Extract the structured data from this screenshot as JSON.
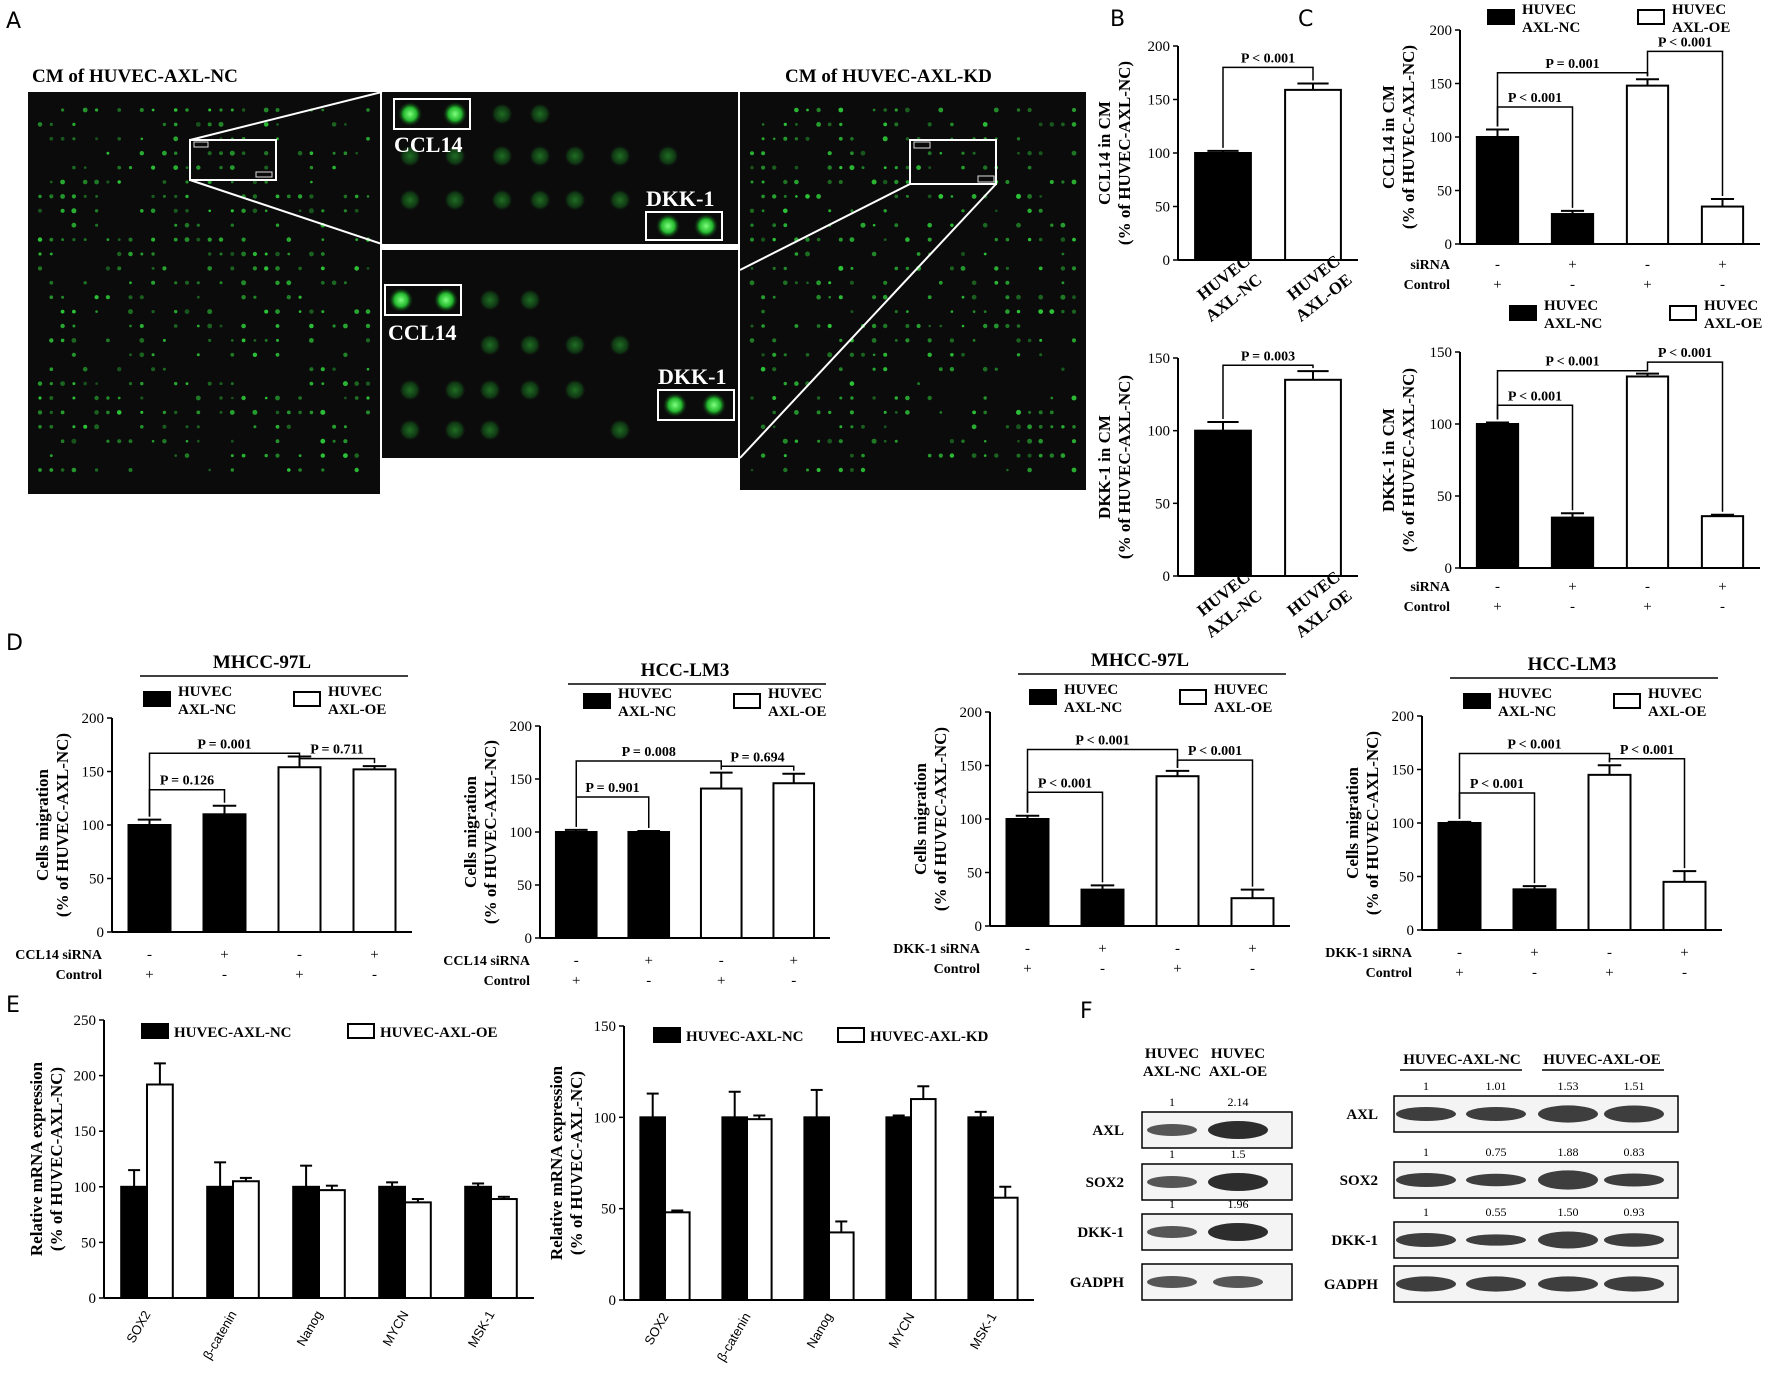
{
  "panels": {
    "A": "A",
    "B": "B",
    "C": "C",
    "D": "D",
    "E": "E",
    "F": "F"
  },
  "panel_a": {
    "left_title": "CM of  HUVEC-AXL-NC",
    "right_title": "CM of  HUVEC-AXL-KD",
    "labels": [
      "CCL14",
      "DKK-1",
      "CCL14",
      "DKK-1"
    ]
  },
  "sirna_label": "siRNA",
  "control_label": "Control",
  "chart_data": [
    {
      "id": "B1",
      "type": "bar",
      "ylabel": [
        "CCL14 in CM",
        "(% of HUVEC-AXL-NC)"
      ],
      "ylim": [
        0,
        200
      ],
      "yticks": [
        0,
        50,
        100,
        150,
        200
      ],
      "categories": [
        [
          "HUVEC",
          "AXL-NC"
        ],
        [
          "HUVEC",
          "AXL-OE"
        ]
      ],
      "values": [
        100,
        159
      ],
      "errors": [
        2,
        6
      ],
      "fill": [
        "black",
        "white"
      ],
      "comparisons": [
        {
          "a": 0,
          "b": 1,
          "label": "P < 0.001"
        }
      ]
    },
    {
      "id": "B2",
      "type": "bar",
      "ylabel": [
        "DKK-1 in CM",
        "(% of HUVEC-AXL-NC)"
      ],
      "ylim": [
        0,
        150
      ],
      "yticks": [
        0,
        50,
        100,
        150
      ],
      "categories": [
        [
          "HUVEC",
          "AXL-NC"
        ],
        [
          "HUVEC",
          "AXL-OE"
        ]
      ],
      "values": [
        100,
        135
      ],
      "errors": [
        6,
        6
      ],
      "fill": [
        "black",
        "white"
      ],
      "comparisons": [
        {
          "a": 0,
          "b": 1,
          "label": "P = 0.003"
        }
      ]
    },
    {
      "id": "C1",
      "type": "bar",
      "ylabel": [
        "CCL14 in CM",
        "(% of HUVEC-AXL-NC)"
      ],
      "ylim": [
        0,
        200
      ],
      "yticks": [
        0,
        50,
        100,
        150,
        200
      ],
      "legend": [
        [
          "HUVEC",
          "AXL-NC"
        ],
        [
          "HUVEC",
          "AXL-OE"
        ]
      ],
      "values": [
        100,
        28,
        148,
        35
      ],
      "errors": [
        7,
        3,
        6,
        7
      ],
      "fill": [
        "black",
        "black",
        "white",
        "white"
      ],
      "row1": [
        "-",
        "+",
        "-",
        "+"
      ],
      "row2": [
        "+",
        "-",
        "+",
        "-"
      ],
      "comparisons": [
        {
          "a": 0,
          "b": 1,
          "label": "P < 0.001"
        },
        {
          "a": 0,
          "b": 2,
          "label": "P = 0.001"
        },
        {
          "a": 2,
          "b": 3,
          "label": "P < 0.001"
        }
      ]
    },
    {
      "id": "C2",
      "type": "bar",
      "ylabel": [
        "DKK-1 in CM",
        "(% of HUVEC-AXL-NC)"
      ],
      "ylim": [
        0,
        150
      ],
      "yticks": [
        0,
        50,
        100,
        150
      ],
      "legend": [
        [
          "HUVEC",
          "AXL-NC"
        ],
        [
          "HUVEC",
          "AXL-OE"
        ]
      ],
      "values": [
        100,
        35,
        133,
        36
      ],
      "errors": [
        1,
        3,
        2,
        1
      ],
      "fill": [
        "black",
        "black",
        "white",
        "white"
      ],
      "row1": [
        "-",
        "+",
        "-",
        "+"
      ],
      "row2": [
        "+",
        "-",
        "+",
        "-"
      ],
      "comparisons": [
        {
          "a": 0,
          "b": 1,
          "label": "P < 0.001"
        },
        {
          "a": 0,
          "b": 2,
          "label": "P < 0.001"
        },
        {
          "a": 2,
          "b": 3,
          "label": "P < 0.001"
        }
      ]
    },
    {
      "id": "D1",
      "type": "bar",
      "title": "MHCC-97L",
      "ylabel": [
        "Cells migration",
        "(% of  HUVEC-AXL-NC)"
      ],
      "ylim": [
        0,
        200
      ],
      "yticks": [
        0,
        50,
        100,
        150,
        200
      ],
      "legend": [
        [
          "HUVEC",
          "AXL-NC"
        ],
        [
          "HUVEC",
          "AXL-OE"
        ]
      ],
      "values": [
        100,
        110,
        154,
        152
      ],
      "errors": [
        5,
        8,
        10,
        3
      ],
      "fill": [
        "black",
        "black",
        "white",
        "white"
      ],
      "row1_label": "CCL14 siRNA",
      "row1": [
        "-",
        "+",
        "-",
        "+"
      ],
      "row2": [
        "+",
        "-",
        "+",
        "-"
      ],
      "comparisons": [
        {
          "a": 0,
          "b": 1,
          "label": "P = 0.126"
        },
        {
          "a": 0,
          "b": 2,
          "label": "P = 0.001"
        },
        {
          "a": 2,
          "b": 3,
          "label": "P = 0.711"
        }
      ]
    },
    {
      "id": "D2",
      "type": "bar",
      "title": "HCC-LM3",
      "ylabel": [
        "Cells migration",
        "(% of  HUVEC-AXL-NC)"
      ],
      "ylim": [
        0,
        200
      ],
      "yticks": [
        0,
        50,
        100,
        150,
        200
      ],
      "legend": [
        [
          "HUVEC",
          "AXL-NC"
        ],
        [
          "HUVEC",
          "AXL-OE"
        ]
      ],
      "values": [
        100,
        100,
        141,
        146
      ],
      "errors": [
        2,
        1,
        15,
        9
      ],
      "fill": [
        "black",
        "black",
        "white",
        "white"
      ],
      "row1_label": "CCL14 siRNA",
      "row1": [
        "-",
        "+",
        "-",
        "+"
      ],
      "row2": [
        "+",
        "-",
        "+",
        "-"
      ],
      "comparisons": [
        {
          "a": 0,
          "b": 1,
          "label": "P = 0.901"
        },
        {
          "a": 0,
          "b": 2,
          "label": "P = 0.008"
        },
        {
          "a": 2,
          "b": 3,
          "label": "P = 0.694"
        }
      ]
    },
    {
      "id": "D3",
      "type": "bar",
      "title": "MHCC-97L",
      "ylabel": [
        "Cells migration",
        "(% of  HUVEC-AXL-NC)"
      ],
      "ylim": [
        0,
        200
      ],
      "yticks": [
        0,
        50,
        100,
        150,
        200
      ],
      "legend": [
        [
          "HUVEC",
          "AXL-NC"
        ],
        [
          "HUVEC",
          "AXL-OE"
        ]
      ],
      "values": [
        100,
        34,
        140,
        26
      ],
      "errors": [
        3,
        4,
        5,
        8
      ],
      "fill": [
        "black",
        "black",
        "white",
        "white"
      ],
      "row1_label": "DKK-1 siRNA",
      "row1": [
        "-",
        "+",
        "-",
        "+"
      ],
      "row2": [
        "+",
        "-",
        "+",
        "-"
      ],
      "comparisons": [
        {
          "a": 0,
          "b": 1,
          "label": "P < 0.001"
        },
        {
          "a": 0,
          "b": 2,
          "label": "P < 0.001"
        },
        {
          "a": 2,
          "b": 3,
          "label": "P < 0.001"
        }
      ]
    },
    {
      "id": "D4",
      "type": "bar",
      "title": "HCC-LM3",
      "ylabel": [
        "Cells migration",
        "(% of  HUVEC-AXL-NC)"
      ],
      "ylim": [
        0,
        200
      ],
      "yticks": [
        0,
        50,
        100,
        150,
        200
      ],
      "legend": [
        [
          "HUVEC",
          "AXL-NC"
        ],
        [
          "HUVEC",
          "AXL-OE"
        ]
      ],
      "values": [
        100,
        38,
        145,
        45
      ],
      "errors": [
        1,
        3,
        9,
        10
      ],
      "fill": [
        "black",
        "black",
        "white",
        "white"
      ],
      "row1_label": "DKK-1 siRNA",
      "row1": [
        "-",
        "+",
        "-",
        "+"
      ],
      "row2": [
        "+",
        "-",
        "+",
        "-"
      ],
      "comparisons": [
        {
          "a": 0,
          "b": 1,
          "label": "P < 0.001"
        },
        {
          "a": 0,
          "b": 2,
          "label": "P < 0.001"
        },
        {
          "a": 2,
          "b": 3,
          "label": "P < 0.001"
        }
      ]
    },
    {
      "id": "E1",
      "type": "bar",
      "ylabel": [
        "Relative mRNA expression",
        "(% of HUVEC-AXL-NC)"
      ],
      "ylim": [
        0,
        250
      ],
      "yticks": [
        0,
        50,
        100,
        150,
        200,
        250
      ],
      "categories": [
        "SOX2",
        "β-catenin",
        "Nanog",
        "MYCN",
        "MSK-1"
      ],
      "series": [
        {
          "name": "HUVEC-AXL-NC",
          "values": [
            100,
            100,
            100,
            100,
            100
          ],
          "errors": [
            15,
            22,
            19,
            4,
            3
          ]
        },
        {
          "name": "HUVEC-AXL-OE",
          "values": [
            192,
            105,
            97,
            86,
            89
          ],
          "errors": [
            19,
            3,
            4,
            3,
            2
          ]
        }
      ]
    },
    {
      "id": "E2",
      "type": "bar",
      "ylabel": [
        "Relative mRNA expression",
        "(% of HUVEC-AXL-NC)"
      ],
      "ylim": [
        0,
        150
      ],
      "yticks": [
        0,
        50,
        100,
        150
      ],
      "categories": [
        "SOX2",
        "β-catenin",
        "Nanog",
        "MYCN",
        "MSK-1"
      ],
      "series": [
        {
          "name": "HUVEC-AXL-NC",
          "values": [
            100,
            100,
            100,
            100,
            100
          ],
          "errors": [
            13,
            14,
            15,
            1,
            3
          ]
        },
        {
          "name": "HUVEC-AXL-KD",
          "values": [
            48,
            99,
            37,
            110,
            56
          ],
          "errors": [
            1,
            2,
            6,
            7,
            6
          ]
        }
      ]
    }
  ],
  "western_left": {
    "headers": [
      [
        "HUVEC",
        "AXL-NC"
      ],
      [
        "HUVEC",
        "AXL-OE"
      ]
    ],
    "rows": [
      {
        "label": "AXL",
        "values": [
          "1",
          "2.14"
        ]
      },
      {
        "label": "SOX2",
        "values": [
          "1",
          "1.5"
        ]
      },
      {
        "label": "DKK-1",
        "values": [
          "1",
          "1.96"
        ]
      },
      {
        "label": "GADPH",
        "values": []
      }
    ]
  },
  "western_right": {
    "headers": [
      "HUVEC-AXL-NC",
      "HUVEC-AXL-OE"
    ],
    "rows": [
      {
        "label": "AXL",
        "values": [
          "1",
          "1.01",
          "1.53",
          "1.51"
        ]
      },
      {
        "label": "SOX2",
        "values": [
          "1",
          "0.75",
          "1.88",
          "0.83"
        ]
      },
      {
        "label": "DKK-1",
        "values": [
          "1",
          "0.55",
          "1.50",
          "0.93"
        ]
      },
      {
        "label": "GADPH",
        "values": []
      }
    ]
  },
  "colors": {
    "array_bg": "#0b0b0b",
    "spot": "#2fd03a",
    "bar_dark": "#000000",
    "bar_light": "#ffffff"
  }
}
